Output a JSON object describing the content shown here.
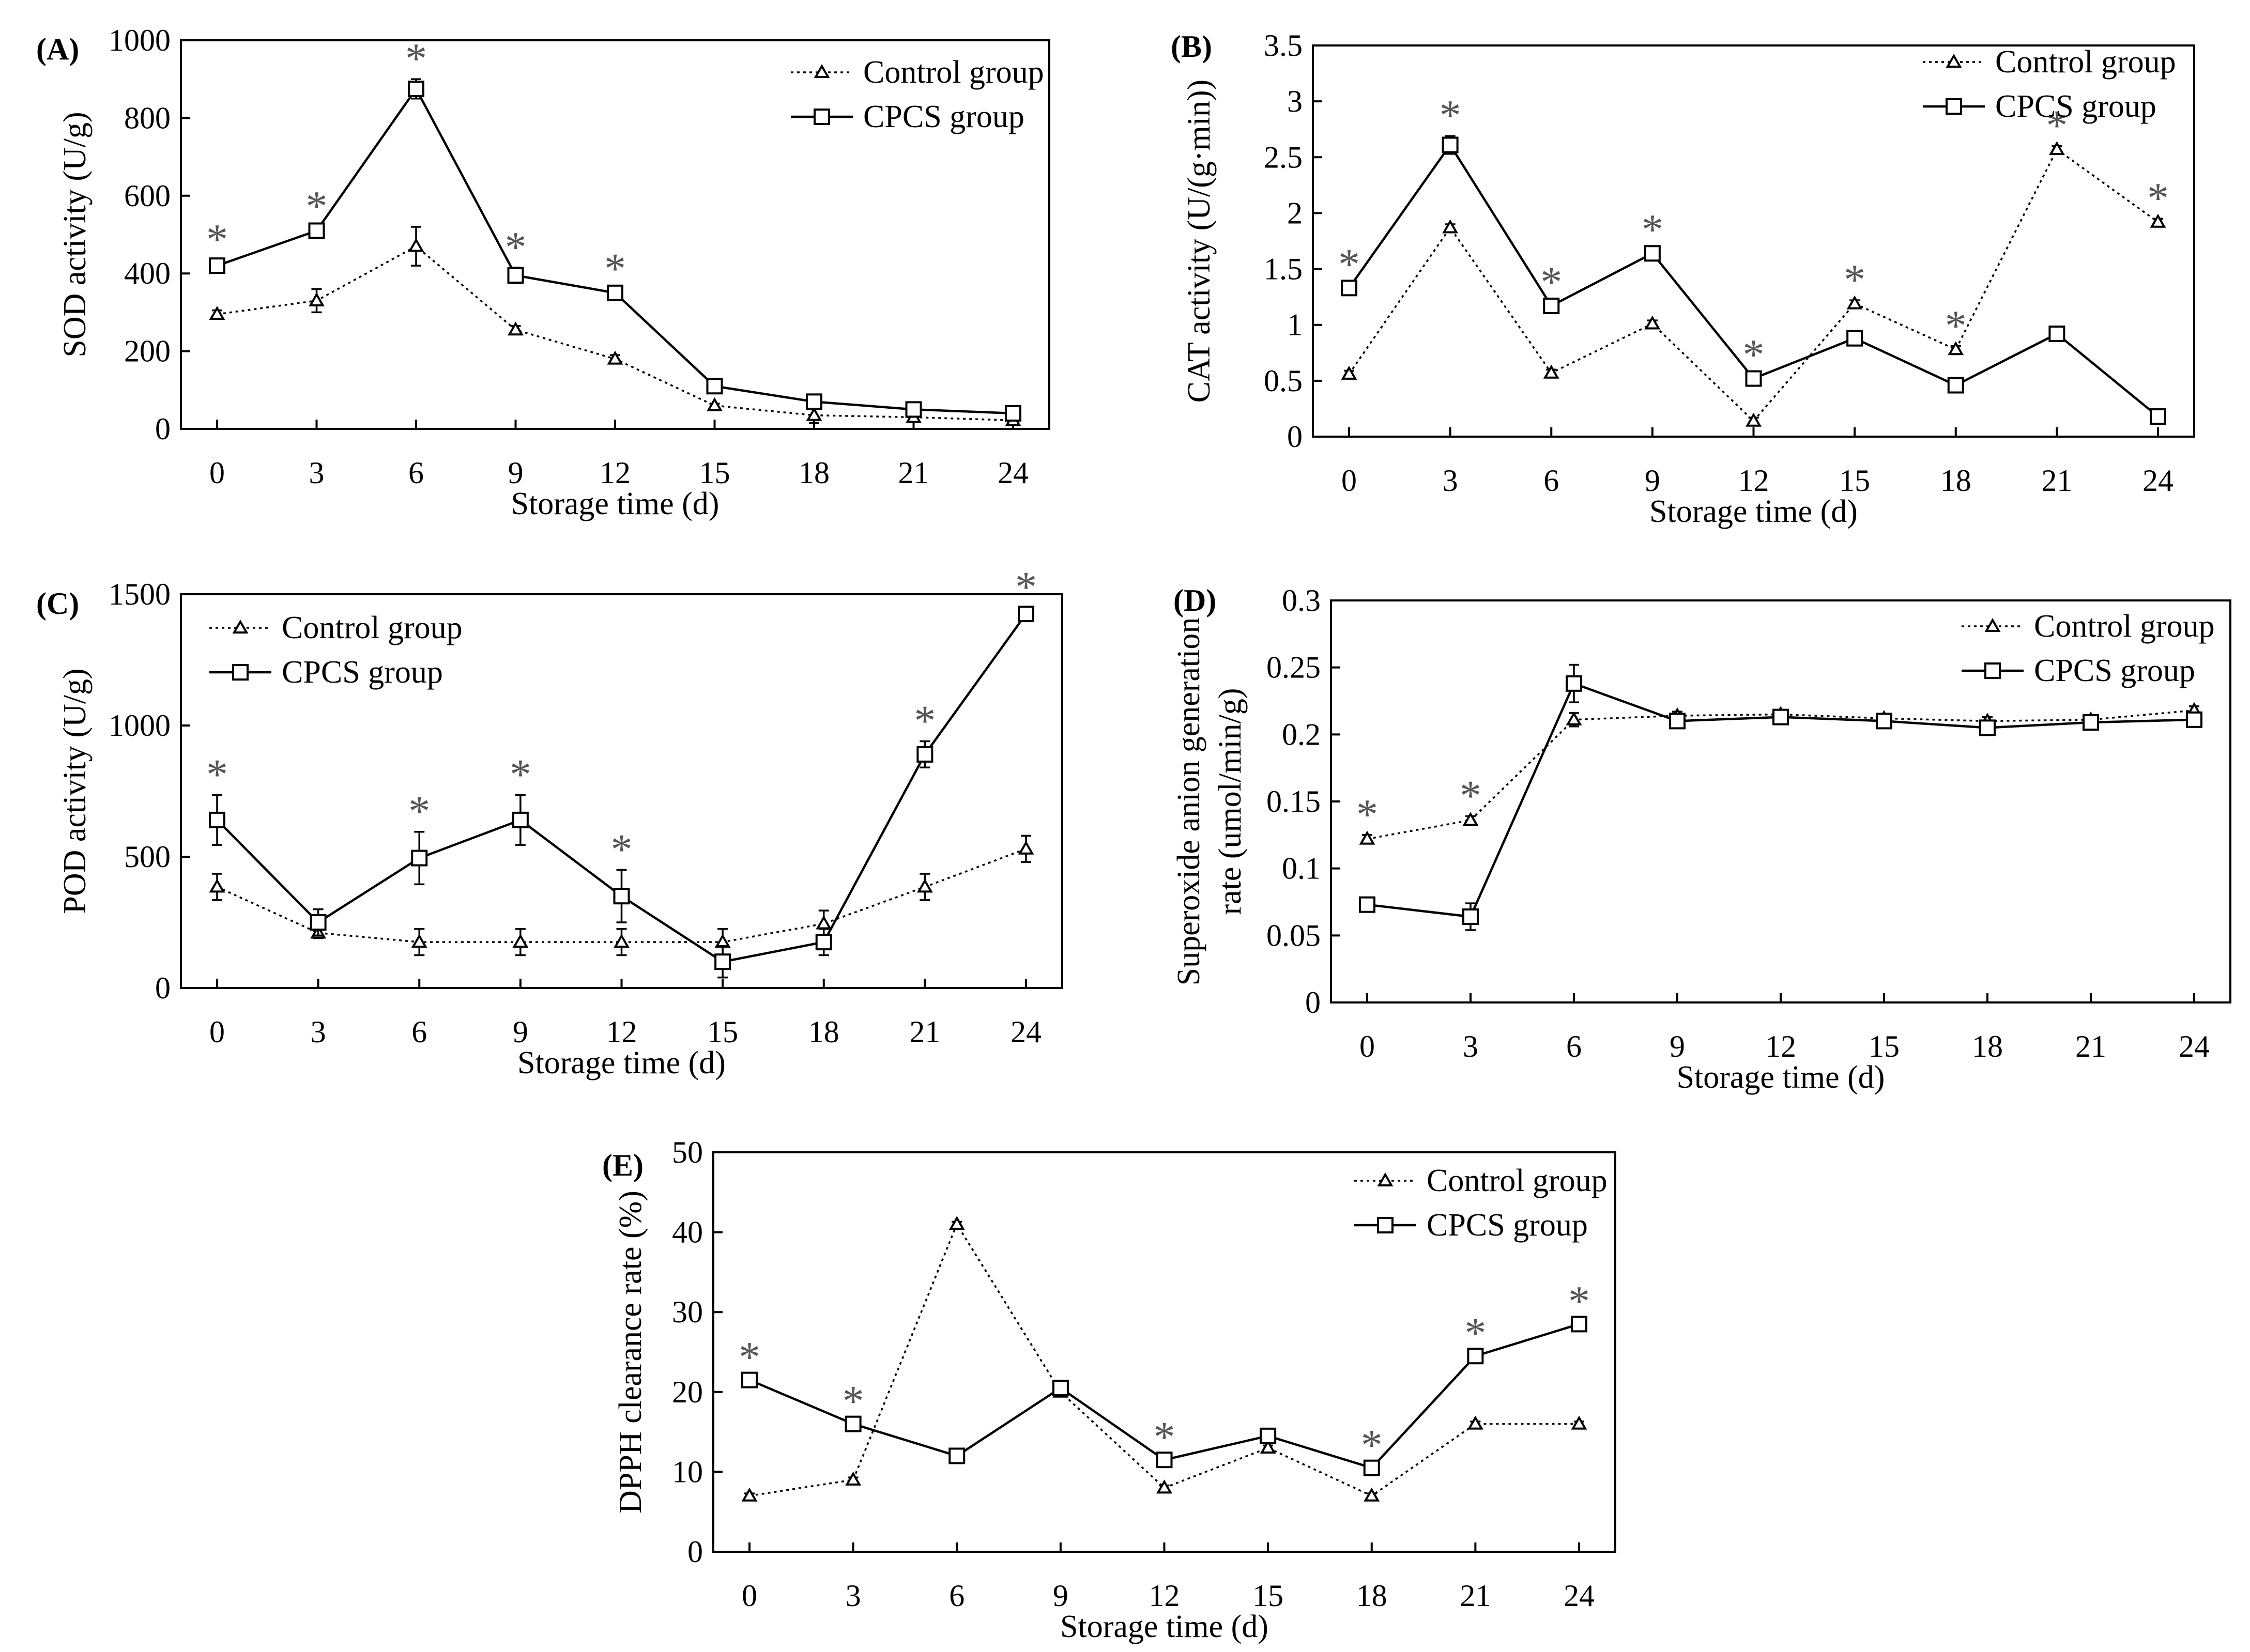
{
  "chart_data": [
    {
      "id": "A",
      "type": "line",
      "panel_label": "(A)",
      "xlabel": "Storage time (d)",
      "ylabel": "SOD activity (U/g)",
      "x": [
        0,
        3,
        6,
        9,
        12,
        15,
        18,
        21,
        24
      ],
      "xticks": [
        "0",
        "3",
        "6",
        "9",
        "12",
        "15",
        "18",
        "21",
        "24"
      ],
      "ylim": [
        0,
        1000
      ],
      "yticks": [
        "0",
        "200",
        "400",
        "600",
        "800",
        "1000"
      ],
      "legend_position": "top-right",
      "series": [
        {
          "name": "Control group",
          "marker": "triangle",
          "style": "dotted",
          "values": [
            295,
            330,
            470,
            255,
            180,
            60,
            35,
            30,
            22
          ],
          "errors": [
            10,
            30,
            50,
            10,
            10,
            5,
            20,
            10,
            10
          ]
        },
        {
          "name": "CPCS group",
          "marker": "square",
          "style": "solid",
          "values": [
            420,
            510,
            875,
            395,
            350,
            110,
            70,
            50,
            40
          ],
          "errors": [
            15,
            10,
            25,
            20,
            10,
            5,
            5,
            5,
            5
          ]
        }
      ],
      "significance": [
        "*",
        "*",
        "*",
        "*",
        "*",
        "",
        "",
        "",
        ""
      ]
    },
    {
      "id": "B",
      "type": "line",
      "panel_label": "(B)",
      "xlabel": "Storage time (d)",
      "ylabel": "CAT activity (U/(g·min))",
      "x": [
        0,
        3,
        6,
        9,
        12,
        15,
        18,
        21,
        24
      ],
      "xticks": [
        "0",
        "3",
        "6",
        "9",
        "12",
        "15",
        "18",
        "21",
        "24"
      ],
      "ylim": [
        0,
        3.5
      ],
      "yticks": [
        "0",
        "0.5",
        "1",
        "1.5",
        "2",
        "2.5",
        "3",
        "3.5"
      ],
      "legend_position": "top-right",
      "series": [
        {
          "name": "Control group",
          "marker": "triangle",
          "style": "dotted",
          "values": [
            0.56,
            1.87,
            0.57,
            1.01,
            0.14,
            1.19,
            0.78,
            2.57,
            1.92
          ],
          "errors": [
            0.03,
            0.03,
            0.03,
            0.03,
            0.03,
            0.03,
            0.03,
            0.03,
            0.03
          ]
        },
        {
          "name": "CPCS group",
          "marker": "square",
          "style": "solid",
          "values": [
            1.33,
            2.61,
            1.17,
            1.64,
            0.52,
            0.88,
            0.46,
            0.92,
            0.18
          ],
          "errors": [
            0.03,
            0.08,
            0.03,
            0.03,
            0.03,
            0.03,
            0.03,
            0.03,
            0.03
          ]
        }
      ],
      "significance": [
        "*",
        "*",
        "*",
        "*",
        "*",
        "*",
        "*",
        "*",
        "*"
      ]
    },
    {
      "id": "C",
      "type": "line",
      "panel_label": "(C)",
      "xlabel": "Storage time (d)",
      "ylabel": "POD activity (U/g)",
      "x": [
        0,
        3,
        6,
        9,
        12,
        15,
        18,
        21,
        24
      ],
      "xticks": [
        "0",
        "3",
        "6",
        "9",
        "12",
        "15",
        "18",
        "21",
        "24"
      ],
      "ylim": [
        0,
        1500
      ],
      "yticks": [
        "0",
        "500",
        "1000",
        "1500"
      ],
      "legend_position": "top-left",
      "series": [
        {
          "name": "Control group",
          "marker": "triangle",
          "style": "dotted",
          "values": [
            385,
            210,
            175,
            175,
            175,
            175,
            245,
            385,
            530
          ],
          "errors": [
            50,
            20,
            50,
            50,
            50,
            50,
            50,
            50,
            50
          ]
        },
        {
          "name": "CPCS group",
          "marker": "square",
          "style": "solid",
          "values": [
            640,
            250,
            495,
            640,
            350,
            100,
            175,
            890,
            1425
          ],
          "errors": [
            95,
            50,
            100,
            95,
            100,
            60,
            50,
            50,
            25
          ]
        }
      ],
      "significance": [
        "*",
        "",
        "*",
        "*",
        "*",
        "",
        "",
        "*",
        "*"
      ]
    },
    {
      "id": "D",
      "type": "line",
      "panel_label": "(D)",
      "xlabel": "Storage time (d)",
      "ylabel_lines": [
        "Superoxide anion generation",
        "rate (umol/min/g)"
      ],
      "x": [
        0,
        3,
        6,
        9,
        12,
        15,
        18,
        21,
        24
      ],
      "xticks": [
        "0",
        "3",
        "6",
        "9",
        "12",
        "15",
        "18",
        "21",
        "24"
      ],
      "ylim": [
        0,
        0.3
      ],
      "yticks": [
        "0",
        "0.05",
        "0.1",
        "0.15",
        "0.2",
        "0.25",
        "0.3"
      ],
      "legend_position": "top-right",
      "series": [
        {
          "name": "Control group",
          "marker": "triangle",
          "style": "dotted",
          "values": [
            0.122,
            0.136,
            0.211,
            0.214,
            0.215,
            0.212,
            0.21,
            0.211,
            0.218
          ],
          "errors": [
            0.003,
            0.003,
            0.005,
            0.003,
            0.003,
            0.003,
            0.003,
            0.003,
            0.003
          ]
        },
        {
          "name": "CPCS group",
          "marker": "square",
          "style": "solid",
          "values": [
            0.073,
            0.064,
            0.238,
            0.21,
            0.213,
            0.21,
            0.205,
            0.209,
            0.211
          ],
          "errors": [
            0.003,
            0.01,
            0.014,
            0.003,
            0.003,
            0.003,
            0.003,
            0.003,
            0.003
          ]
        }
      ],
      "significance": [
        "*",
        "*",
        "",
        "",
        "",
        "",
        "",
        "",
        ""
      ]
    },
    {
      "id": "E",
      "type": "line",
      "panel_label": "(E)",
      "xlabel": "Storage time (d)",
      "ylabel": "DPPH clearance rate (%)",
      "x": [
        0,
        3,
        6,
        9,
        12,
        15,
        18,
        21,
        24
      ],
      "xticks": [
        "0",
        "3",
        "6",
        "9",
        "12",
        "15",
        "18",
        "21",
        "24"
      ],
      "ylim": [
        0,
        50
      ],
      "yticks": [
        "0",
        "10",
        "20",
        "30",
        "40",
        "50"
      ],
      "legend_position": "top-right",
      "series": [
        {
          "name": "Control group",
          "marker": "triangle",
          "style": "dotted",
          "values": [
            7,
            9,
            41,
            20,
            8,
            13,
            7,
            16,
            16
          ],
          "errors": [
            0.3,
            0.3,
            0.3,
            0.3,
            0.3,
            0.3,
            0.3,
            0.3,
            0.3
          ]
        },
        {
          "name": "CPCS group",
          "marker": "square",
          "style": "solid",
          "values": [
            21.5,
            16,
            12,
            20.5,
            11.5,
            14.5,
            10.5,
            24.5,
            28.5
          ],
          "errors": [
            0.3,
            0.3,
            0.3,
            0.3,
            0.3,
            0.3,
            0.3,
            0.3,
            0.3
          ]
        }
      ],
      "significance": [
        "*",
        "*",
        "",
        "",
        "*",
        "",
        "*",
        "*",
        "*"
      ]
    }
  ]
}
